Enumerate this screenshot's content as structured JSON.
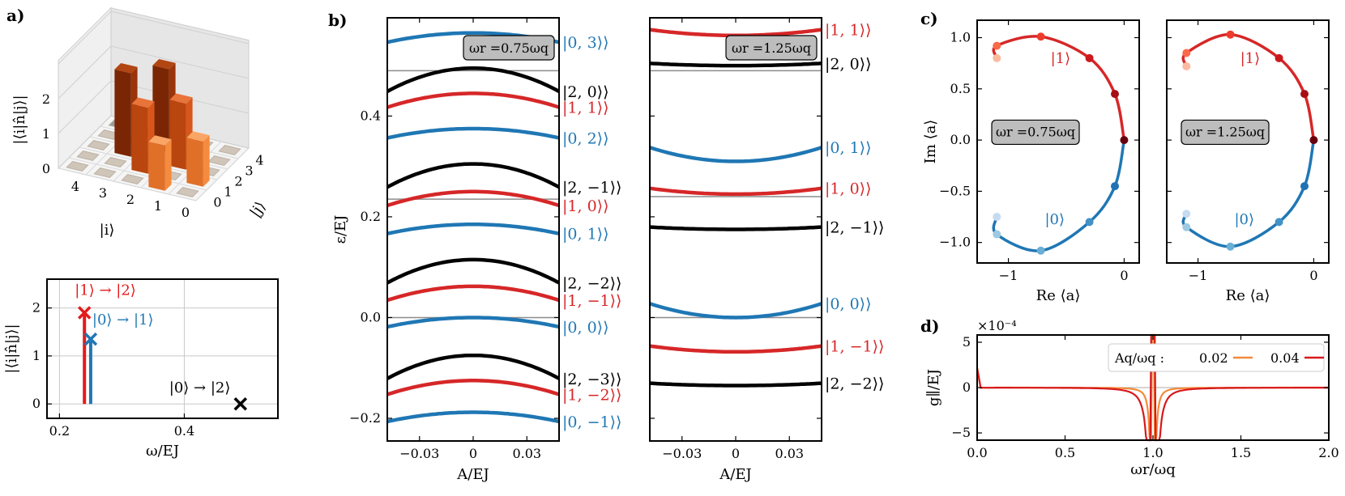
{
  "panels": {
    "a": "a)",
    "b": "b)",
    "c": "c)",
    "d": "d)"
  },
  "colors": {
    "blue": "#1f77b4",
    "red": "#d62728",
    "black": "#000000",
    "gray": "#8c8c8c",
    "orange_light": "#f2a35a",
    "orange_dark": "#e4761c",
    "brown": "#8b2a06",
    "rust": "#c2410c"
  },
  "chart_data": [
    {
      "id": "a_bar3d",
      "type": "bar3d",
      "xlabel": "|i⟩",
      "ylabel": "|j⟩",
      "zlabel": "|⟨i|n̂|j⟩|",
      "x_ticks": [
        "4",
        "3",
        "2",
        "1",
        "0"
      ],
      "y_ticks": [
        "0",
        "1",
        "2",
        "3",
        "4"
      ],
      "z_ticks": [
        "0",
        "1",
        "2"
      ],
      "bars": [
        {
          "i": 1,
          "j": 0,
          "value": 1.3
        },
        {
          "i": 0,
          "j": 1,
          "value": 1.3
        },
        {
          "i": 2,
          "j": 1,
          "value": 1.9
        },
        {
          "i": 1,
          "j": 2,
          "value": 1.9
        },
        {
          "i": 3,
          "j": 2,
          "value": 2.4
        },
        {
          "i": 2,
          "j": 3,
          "value": 2.4
        }
      ]
    },
    {
      "id": "a_stem",
      "type": "stem",
      "xlabel": "ω/EJ",
      "ylabel": "|⟨i|n̂|j⟩|",
      "xlim": [
        0.18,
        0.55
      ],
      "ylim": [
        -0.3,
        2.6
      ],
      "x_ticks": [
        "0.2",
        "0.4"
      ],
      "y_ticks": [
        "0",
        "1",
        "2"
      ],
      "series": [
        {
          "name": "|1⟩ → |2⟩",
          "color": "#e41a1c",
          "x": 0.24,
          "y": 1.9
        },
        {
          "name": "|0⟩ → |1⟩",
          "color": "#1f77b4",
          "x": 0.25,
          "y": 1.35
        },
        {
          "name": "|0⟩ → |2⟩",
          "color": "#000000",
          "x": 0.49,
          "y": 0.0
        }
      ]
    },
    {
      "id": "b_left",
      "type": "line",
      "xlabel": "A/EJ",
      "ylabel": "ε/EJ",
      "xlim": [
        -0.048,
        0.048
      ],
      "ylim": [
        -0.245,
        0.595
      ],
      "x_ticks": [
        "-0.03",
        "0",
        "0.03"
      ],
      "y_ticks": [
        "-0.2",
        "0.0",
        "0.2",
        "0.4"
      ],
      "annotation": "ωr =0.75ωq",
      "series": [
        {
          "name": "|0, 3⟩⟩",
          "color": "#1f77b4",
          "y0": 0.565,
          "curv": -8
        },
        {
          "name": "|2, 0⟩⟩",
          "color": "#000000",
          "y0": 0.495,
          "curv": -20
        },
        {
          "name": "|1, 1⟩⟩",
          "color": "#d62728",
          "y0": 0.445,
          "curv": -12
        },
        {
          "name": "|0, 2⟩⟩",
          "color": "#1f77b4",
          "y0": 0.375,
          "curv": -8
        },
        {
          "name": "|2, −1⟩⟩",
          "color": "#000000",
          "y0": 0.305,
          "curv": -20
        },
        {
          "name": "|1, 0⟩⟩",
          "color": "#d62728",
          "y0": 0.25,
          "curv": -12
        },
        {
          "name": "|0, 1⟩⟩",
          "color": "#1f77b4",
          "y0": 0.185,
          "curv": -8
        },
        {
          "name": "|2, −2⟩⟩",
          "color": "#000000",
          "y0": 0.115,
          "curv": -20
        },
        {
          "name": "|1, −1⟩⟩",
          "color": "#d62728",
          "y0": 0.062,
          "curv": -12
        },
        {
          "name": "|0, 0⟩⟩",
          "color": "#1f77b4",
          "y0": 0.0,
          "curv": -8
        },
        {
          "name": "|2, −3⟩⟩",
          "color": "#000000",
          "y0": -0.075,
          "curv": -20
        },
        {
          "name": "|1, −2⟩⟩",
          "color": "#d62728",
          "y0": -0.125,
          "curv": -12
        },
        {
          "name": "|0, −1⟩⟩",
          "color": "#1f77b4",
          "y0": -0.188,
          "curv": -8
        }
      ],
      "gray_lines": [
        {
          "y0": 0.49,
          "curv": 0
        },
        {
          "y0": 0.235,
          "curv": 0
        },
        {
          "y0": 0.0,
          "curv": 0
        }
      ]
    },
    {
      "id": "b_right",
      "type": "line",
      "xlabel": "A/EJ",
      "xlim": [
        -0.048,
        0.048
      ],
      "ylim": [
        -0.245,
        0.595
      ],
      "x_ticks": [
        "-0.03",
        "0",
        "0.03"
      ],
      "annotation": "ωr =1.25ωq",
      "series": [
        {
          "name": "|1, 1⟩⟩",
          "color": "#d62728",
          "y0": 0.56,
          "curv": 5
        },
        {
          "name": "|2, 0⟩⟩",
          "color": "#000000",
          "y0": 0.5,
          "curv": 2
        },
        {
          "name": "|0, 1⟩⟩",
          "color": "#1f77b4",
          "y0": 0.31,
          "curv": 12
        },
        {
          "name": "|1, 0⟩⟩",
          "color": "#d62728",
          "y0": 0.245,
          "curv": 5
        },
        {
          "name": "|2, −1⟩⟩",
          "color": "#000000",
          "y0": 0.175,
          "curv": 2
        },
        {
          "name": "|0, 0⟩⟩",
          "color": "#1f77b4",
          "y0": 0.0,
          "curv": 12
        },
        {
          "name": "|1, −1⟩⟩",
          "color": "#d62728",
          "y0": -0.068,
          "curv": 5
        },
        {
          "name": "|2, −2⟩⟩",
          "color": "#000000",
          "y0": -0.135,
          "curv": 2
        }
      ],
      "gray_lines": [
        {
          "y0": 0.49,
          "curv": 0
        },
        {
          "y0": 0.24,
          "curv": 0
        },
        {
          "y0": 0.0,
          "curv": 0
        }
      ]
    },
    {
      "id": "c_left",
      "type": "parametric",
      "xlabel": "Re ⟨a⟩",
      "ylabel": "Im ⟨a⟩",
      "xlim": [
        -1.27,
        0.13
      ],
      "ylim": [
        -1.2,
        1.17
      ],
      "x_ticks": [
        "-1",
        "0"
      ],
      "y_ticks": [
        "-1.0",
        "-0.5",
        "0.0",
        "0.5",
        "1.0"
      ],
      "annotation": "ωr =0.75ωq",
      "labels": [
        "|1⟩",
        "|0⟩"
      ],
      "upper_points": [
        [
          0.0,
          0.0
        ],
        [
          -0.08,
          0.45
        ],
        [
          -0.3,
          0.8
        ],
        [
          -0.72,
          1.01
        ],
        [
          -1.1,
          0.92
        ],
        [
          -1.1,
          0.8
        ]
      ],
      "lower_points": [
        [
          0.0,
          0.0
        ],
        [
          -0.08,
          -0.45
        ],
        [
          -0.3,
          -0.8
        ],
        [
          -0.72,
          -1.08
        ],
        [
          -1.1,
          -0.92
        ],
        [
          -1.1,
          -0.75
        ]
      ]
    },
    {
      "id": "c_right",
      "type": "parametric",
      "xlabel": "Re ⟨a⟩",
      "xlim": [
        -1.27,
        0.13
      ],
      "ylim": [
        -1.2,
        1.17
      ],
      "x_ticks": [
        "-1",
        "0"
      ],
      "annotation": "ωr =1.25ωq",
      "labels": [
        "|1⟩",
        "|0⟩"
      ],
      "upper_points": [
        [
          0.0,
          0.0
        ],
        [
          -0.08,
          0.45
        ],
        [
          -0.3,
          0.8
        ],
        [
          -0.72,
          1.03
        ],
        [
          -1.1,
          0.85
        ],
        [
          -1.1,
          0.72
        ]
      ],
      "lower_points": [
        [
          0.0,
          0.0
        ],
        [
          -0.08,
          -0.45
        ],
        [
          -0.3,
          -0.8
        ],
        [
          -0.72,
          -1.04
        ],
        [
          -1.1,
          -0.85
        ],
        [
          -1.1,
          -0.72
        ]
      ]
    },
    {
      "id": "d",
      "type": "line",
      "xlabel": "ωr/ωq",
      "ylabel": "g∥/EJ",
      "xlim": [
        0.0,
        2.0
      ],
      "ylim": [
        -5.8,
        5.8
      ],
      "x_ticks": [
        "0.0",
        "0.5",
        "1.0",
        "1.5",
        "2.0"
      ],
      "y_ticks": [
        "-5",
        "0",
        "5"
      ],
      "multiplier": "×10⁻⁴",
      "legend_title": "Aq/ωq :",
      "series": [
        {
          "name": "0.02",
          "color": "#f58a3a",
          "a": 0.02
        },
        {
          "name": "0.04",
          "color": "#d7191c",
          "a": 0.04
        }
      ]
    }
  ]
}
